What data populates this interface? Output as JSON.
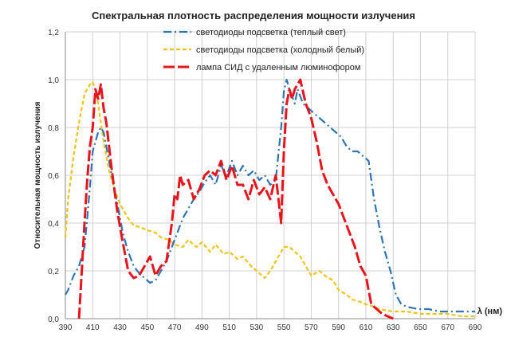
{
  "chart_data": {
    "type": "line",
    "title": "Спектральная плотность распределения мощности излучения",
    "xlabel": "λ (нм)",
    "ylabel": "Относительная мощность излучения",
    "xlim": [
      390,
      690
    ],
    "ylim": [
      0,
      1.2
    ],
    "x_ticks": [
      "390",
      "410",
      "430",
      "450",
      "470",
      "490",
      "510",
      "530",
      "550",
      "570",
      "590",
      "610",
      "630",
      "650",
      "670",
      "690"
    ],
    "y_ticks": [
      "0,0",
      "0,2",
      "0,4",
      "0,6",
      "0,8",
      "1,0",
      "1,2"
    ],
    "grid": true,
    "legend_position": "top",
    "series": [
      {
        "name": "светодиоды подсветка (теплый свет)",
        "color": "#2e75b6",
        "dash": "dashdot",
        "x": [
          390,
          392,
          396,
          400,
          404,
          406,
          408,
          410,
          412,
          414,
          416,
          418,
          420,
          424,
          428,
          432,
          436,
          440,
          444,
          448,
          452,
          456,
          460,
          464,
          468,
          472,
          476,
          480,
          484,
          488,
          492,
          496,
          500,
          504,
          508,
          512,
          516,
          520,
          524,
          528,
          532,
          536,
          540,
          544,
          548,
          550,
          552,
          554,
          556,
          558,
          560,
          564,
          568,
          572,
          576,
          580,
          584,
          588,
          592,
          596,
          600,
          604,
          608,
          612,
          616,
          620,
          624,
          628,
          632,
          636,
          640,
          648,
          656,
          664,
          672,
          680,
          690
        ],
        "y": [
          0.1,
          0.12,
          0.18,
          0.22,
          0.3,
          0.42,
          0.55,
          0.7,
          0.74,
          0.78,
          0.8,
          0.78,
          0.72,
          0.6,
          0.48,
          0.36,
          0.28,
          0.22,
          0.19,
          0.17,
          0.15,
          0.16,
          0.2,
          0.24,
          0.3,
          0.36,
          0.42,
          0.46,
          0.5,
          0.53,
          0.57,
          0.6,
          0.56,
          0.64,
          0.6,
          0.66,
          0.6,
          0.64,
          0.6,
          0.62,
          0.58,
          0.6,
          0.56,
          0.58,
          0.8,
          0.95,
          1.0,
          0.96,
          0.93,
          0.9,
          0.96,
          0.9,
          0.88,
          0.86,
          0.84,
          0.82,
          0.8,
          0.78,
          0.76,
          0.72,
          0.7,
          0.7,
          0.68,
          0.66,
          0.5,
          0.38,
          0.28,
          0.2,
          0.1,
          0.06,
          0.05,
          0.04,
          0.04,
          0.03,
          0.03,
          0.03,
          0.03
        ]
      },
      {
        "name": "светодиоды подсветка (холодный белый)",
        "color": "#f2c318",
        "dash": "dash",
        "x": [
          390,
          392,
          396,
          400,
          404,
          408,
          410,
          412,
          414,
          418,
          422,
          426,
          430,
          436,
          440,
          446,
          450,
          456,
          460,
          466,
          470,
          476,
          480,
          486,
          490,
          496,
          500,
          506,
          510,
          516,
          520,
          526,
          530,
          536,
          540,
          546,
          550,
          554,
          558,
          562,
          566,
          570,
          576,
          580,
          586,
          590,
          596,
          600,
          606,
          610,
          616,
          620,
          630,
          640,
          650,
          660,
          670,
          680,
          690
        ],
        "y": [
          0.34,
          0.5,
          0.68,
          0.82,
          0.94,
          0.98,
          0.99,
          0.96,
          0.9,
          0.74,
          0.62,
          0.54,
          0.48,
          0.42,
          0.39,
          0.38,
          0.37,
          0.36,
          0.34,
          0.33,
          0.31,
          0.3,
          0.33,
          0.3,
          0.32,
          0.28,
          0.31,
          0.27,
          0.28,
          0.25,
          0.26,
          0.22,
          0.2,
          0.17,
          0.2,
          0.26,
          0.3,
          0.3,
          0.28,
          0.26,
          0.22,
          0.18,
          0.2,
          0.18,
          0.16,
          0.12,
          0.1,
          0.08,
          0.07,
          0.06,
          0.05,
          0.04,
          0.03,
          0.03,
          0.02,
          0.02,
          0.02,
          0.01,
          0.01
        ]
      },
      {
        "name": "лампа СИД с удаленным люминофором",
        "color": "#e8141b",
        "dash": "longdash",
        "x": [
          400,
          402,
          404,
          406,
          408,
          410,
          412,
          414,
          416,
          418,
          420,
          424,
          428,
          432,
          436,
          440,
          444,
          448,
          452,
          456,
          460,
          464,
          468,
          470,
          472,
          474,
          476,
          480,
          484,
          488,
          492,
          496,
          500,
          504,
          508,
          512,
          516,
          520,
          524,
          528,
          532,
          536,
          540,
          544,
          548,
          550,
          552,
          554,
          556,
          558,
          560,
          562,
          566,
          570,
          574,
          578,
          582,
          586,
          590,
          594,
          598,
          602,
          606,
          610,
          614,
          618,
          622,
          630
        ],
        "y": [
          0.0,
          0.2,
          0.4,
          0.58,
          0.72,
          0.8,
          0.96,
          0.92,
          0.98,
          0.88,
          0.82,
          0.62,
          0.45,
          0.32,
          0.2,
          0.17,
          0.18,
          0.22,
          0.26,
          0.18,
          0.22,
          0.24,
          0.4,
          0.52,
          0.5,
          0.6,
          0.56,
          0.58,
          0.5,
          0.54,
          0.6,
          0.62,
          0.6,
          0.66,
          0.58,
          0.64,
          0.56,
          0.56,
          0.5,
          0.58,
          0.52,
          0.55,
          0.5,
          0.6,
          0.4,
          0.7,
          0.9,
          0.96,
          0.92,
          0.96,
          0.98,
          1.0,
          0.9,
          0.84,
          0.74,
          0.62,
          0.56,
          0.52,
          0.48,
          0.42,
          0.36,
          0.3,
          0.22,
          0.18,
          0.06,
          0.04,
          0.02,
          0.0
        ]
      }
    ]
  }
}
